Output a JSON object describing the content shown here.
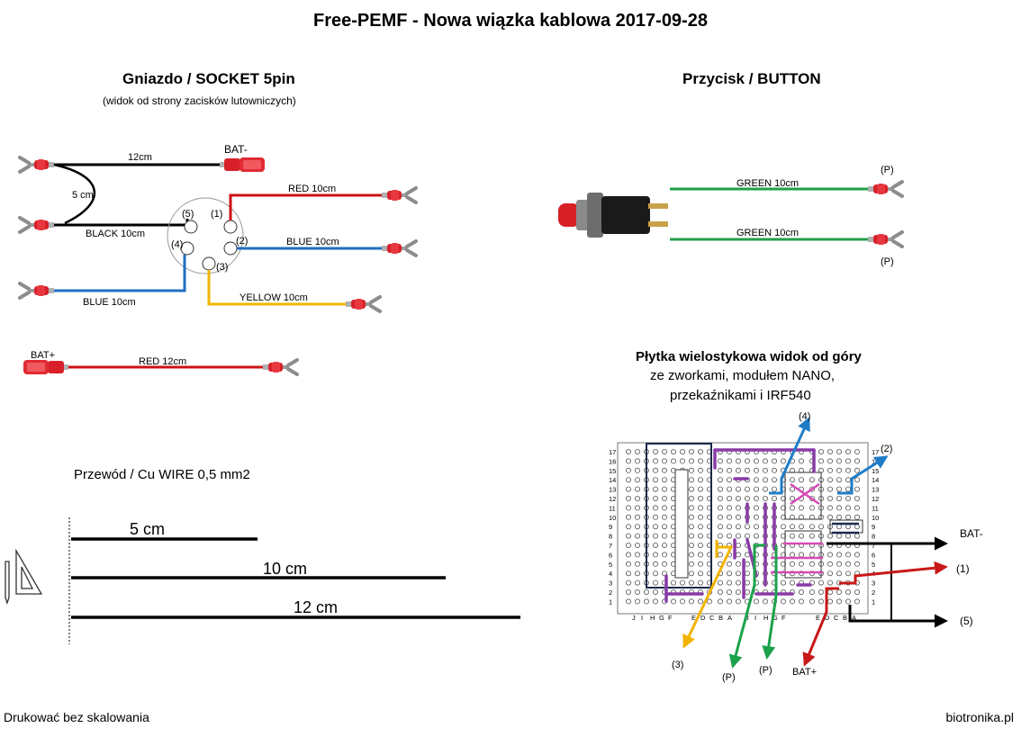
{
  "page": {
    "title": "Free-PEMF - Nowa wiązka kablowa 2017-09-28",
    "footer_left": "Drukować bez skalowania",
    "footer_right": "biotronika.pl"
  },
  "socket": {
    "title": "Gniazdo / SOCKET 5pin",
    "subtitle": "(widok od strony zacisków lutowniczych)",
    "pins": [
      "(1)",
      "(2)",
      "(3)",
      "(4)",
      "(5)"
    ],
    "loop_label": "5 cm",
    "wires": [
      {
        "label": "12cm",
        "color": "#000000"
      },
      {
        "label": "BAT-",
        "color": "#000000"
      },
      {
        "label": "BLACK    10cm",
        "color": "#000000"
      },
      {
        "label": "RED    10cm",
        "color": "#cc1111"
      },
      {
        "label": "BLUE    10cm",
        "color": "#1f6fbf"
      },
      {
        "label": "BLUE   10cm",
        "color": "#1f6fbf"
      },
      {
        "label": "YELLOW    10cm",
        "color": "#f2b400"
      }
    ],
    "bat_plus": {
      "label": "BAT+",
      "wire": "RED    12cm",
      "color": "#cc1111"
    }
  },
  "button": {
    "title": "Przycisk / BUTTON",
    "wires": [
      {
        "label": "GREEN  10cm",
        "end": "(P)",
        "color": "#22a04a"
      },
      {
        "label": "GREEN  10cm",
        "end": "(P)",
        "color": "#22a04a"
      }
    ]
  },
  "board": {
    "title": "Płytka wielostykowa widok od góry",
    "line2": "ze zworkami,  modułem NANO,",
    "line3": "przekaźnikami i IRF540",
    "row_numbers": [
      "17",
      "16",
      "15",
      "14",
      "13",
      "12",
      "11",
      "10",
      "9",
      "8",
      "7",
      "6",
      "5",
      "4",
      "3",
      "2",
      "1"
    ],
    "col_letters": [
      "J",
      "I",
      "H",
      "G",
      "F",
      "E",
      "D",
      "C",
      "B",
      "A"
    ],
    "labels": {
      "l4": "(4)",
      "l2": "(2)",
      "l1": "(1)",
      "l5": "(5)",
      "l3": "(3)",
      "lp1": "(P)",
      "lp2": "(P)",
      "batm": "BAT-",
      "batp": "BAT+"
    }
  },
  "wire_ruler": {
    "title": "Przewód / Cu WIRE 0,5 mm2",
    "lengths": [
      "5 cm",
      "10 cm",
      "12 cm"
    ]
  },
  "icon": "drafting-triangle-pencil-icon"
}
